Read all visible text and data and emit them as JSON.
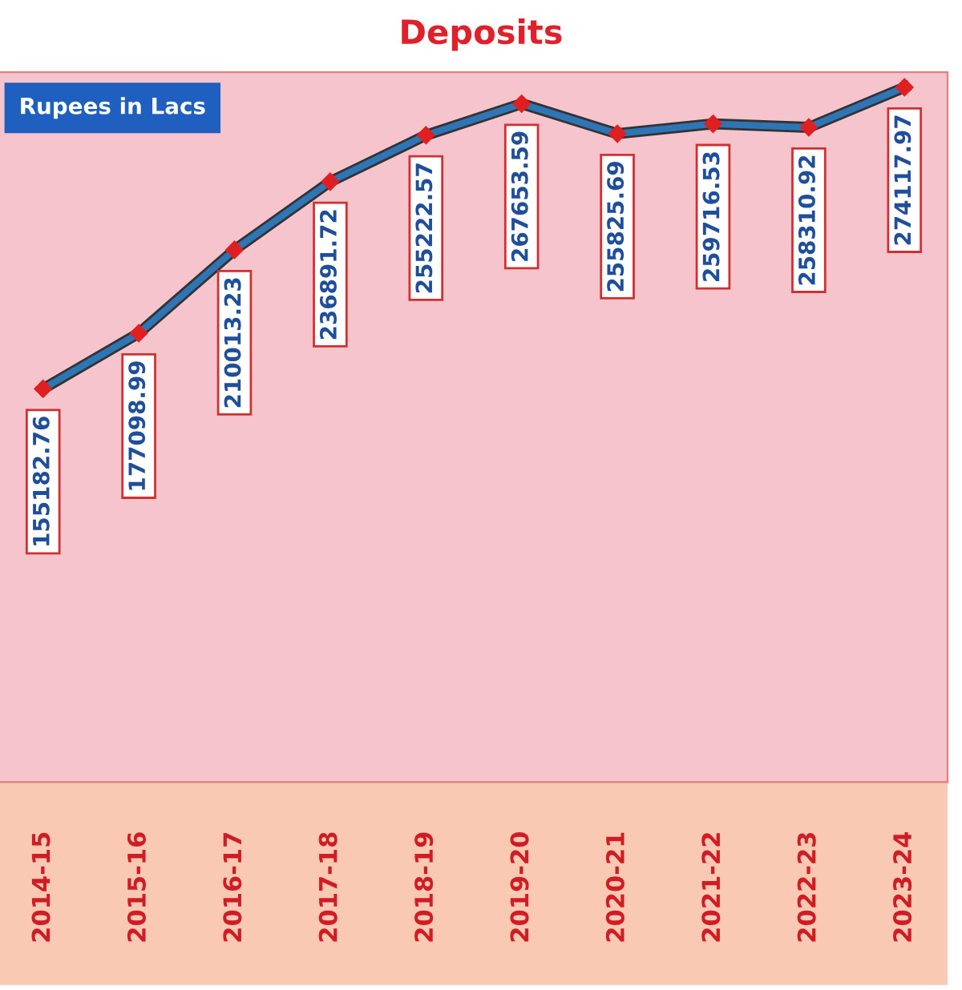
{
  "chart_data": {
    "type": "line",
    "title": "Deposits",
    "annotations": [
      "Rupees in Lacs"
    ],
    "categories": [
      "2014-15",
      "2015-16",
      "2016-17",
      "2017-18",
      "2018-19",
      "2019-20",
      "2020-21",
      "2021-22",
      "2022-23",
      "2023-24"
    ],
    "series": [
      {
        "color": "#2e75b6",
        "values": [
          155182.76,
          177098.99,
          210013.23,
          236891.72,
          255222.57,
          267653.59,
          255825.69,
          259716.53,
          258310.92,
          274117.97
        ]
      }
    ],
    "marker": "diamond",
    "line_style": "solid",
    "data_labels": true,
    "grid": false,
    "legend": false
  }
}
